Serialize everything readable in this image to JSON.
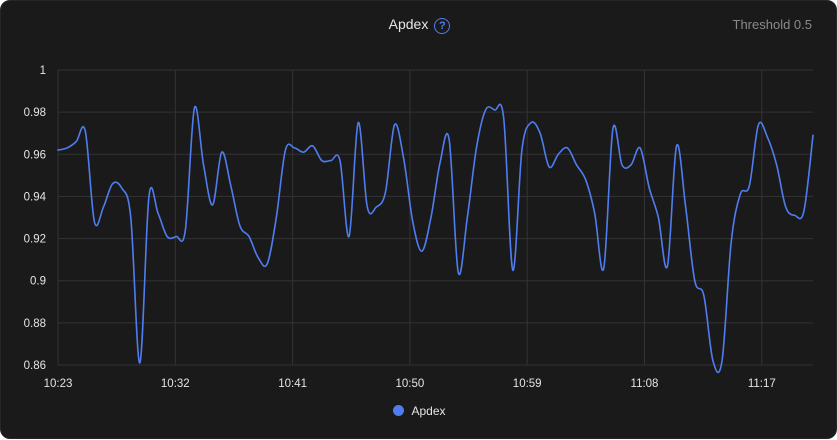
{
  "header": {
    "title": "Apdex",
    "help_icon": "?",
    "threshold_text": "Threshold 0.5"
  },
  "colors": {
    "background": "#1a1a1b",
    "line": "#4f7df0",
    "grid": "#333336",
    "text": "#e4e4e4"
  },
  "chart_data": {
    "type": "line",
    "title": "Apdex",
    "series": [
      {
        "name": "Apdex",
        "values": [
          0.962,
          0.963,
          0.966,
          0.971,
          0.928,
          0.935,
          0.946,
          0.944,
          0.93,
          0.861,
          0.94,
          0.932,
          0.921,
          0.921,
          0.924,
          0.982,
          0.955,
          0.936,
          0.961,
          0.945,
          0.926,
          0.921,
          0.911,
          0.908,
          0.93,
          0.962,
          0.963,
          0.961,
          0.964,
          0.957,
          0.957,
          0.957,
          0.921,
          0.975,
          0.935,
          0.935,
          0.942,
          0.974,
          0.958,
          0.928,
          0.914,
          0.93,
          0.956,
          0.967,
          0.904,
          0.93,
          0.963,
          0.981,
          0.981,
          0.977,
          0.905,
          0.962,
          0.975,
          0.97,
          0.954,
          0.96,
          0.963,
          0.955,
          0.948,
          0.932,
          0.906,
          0.972,
          0.955,
          0.955,
          0.963,
          0.944,
          0.93,
          0.907,
          0.964,
          0.935,
          0.9,
          0.893,
          0.862,
          0.862,
          0.918,
          0.941,
          0.945,
          0.974,
          0.968,
          0.955,
          0.935,
          0.931,
          0.933,
          0.969
        ]
      }
    ],
    "x_ticks": [
      "10:23",
      "10:32",
      "10:41",
      "10:50",
      "10:59",
      "11:08",
      "11:17"
    ],
    "y_ticks": [
      "1",
      "0.98",
      "0.96",
      "0.94",
      "0.92",
      "0.9",
      "0.88",
      "0.86"
    ],
    "ylim": [
      0.86,
      1
    ],
    "grid": true,
    "legend": "bottom-center"
  },
  "legend": {
    "items": [
      {
        "label": "Apdex"
      }
    ]
  }
}
